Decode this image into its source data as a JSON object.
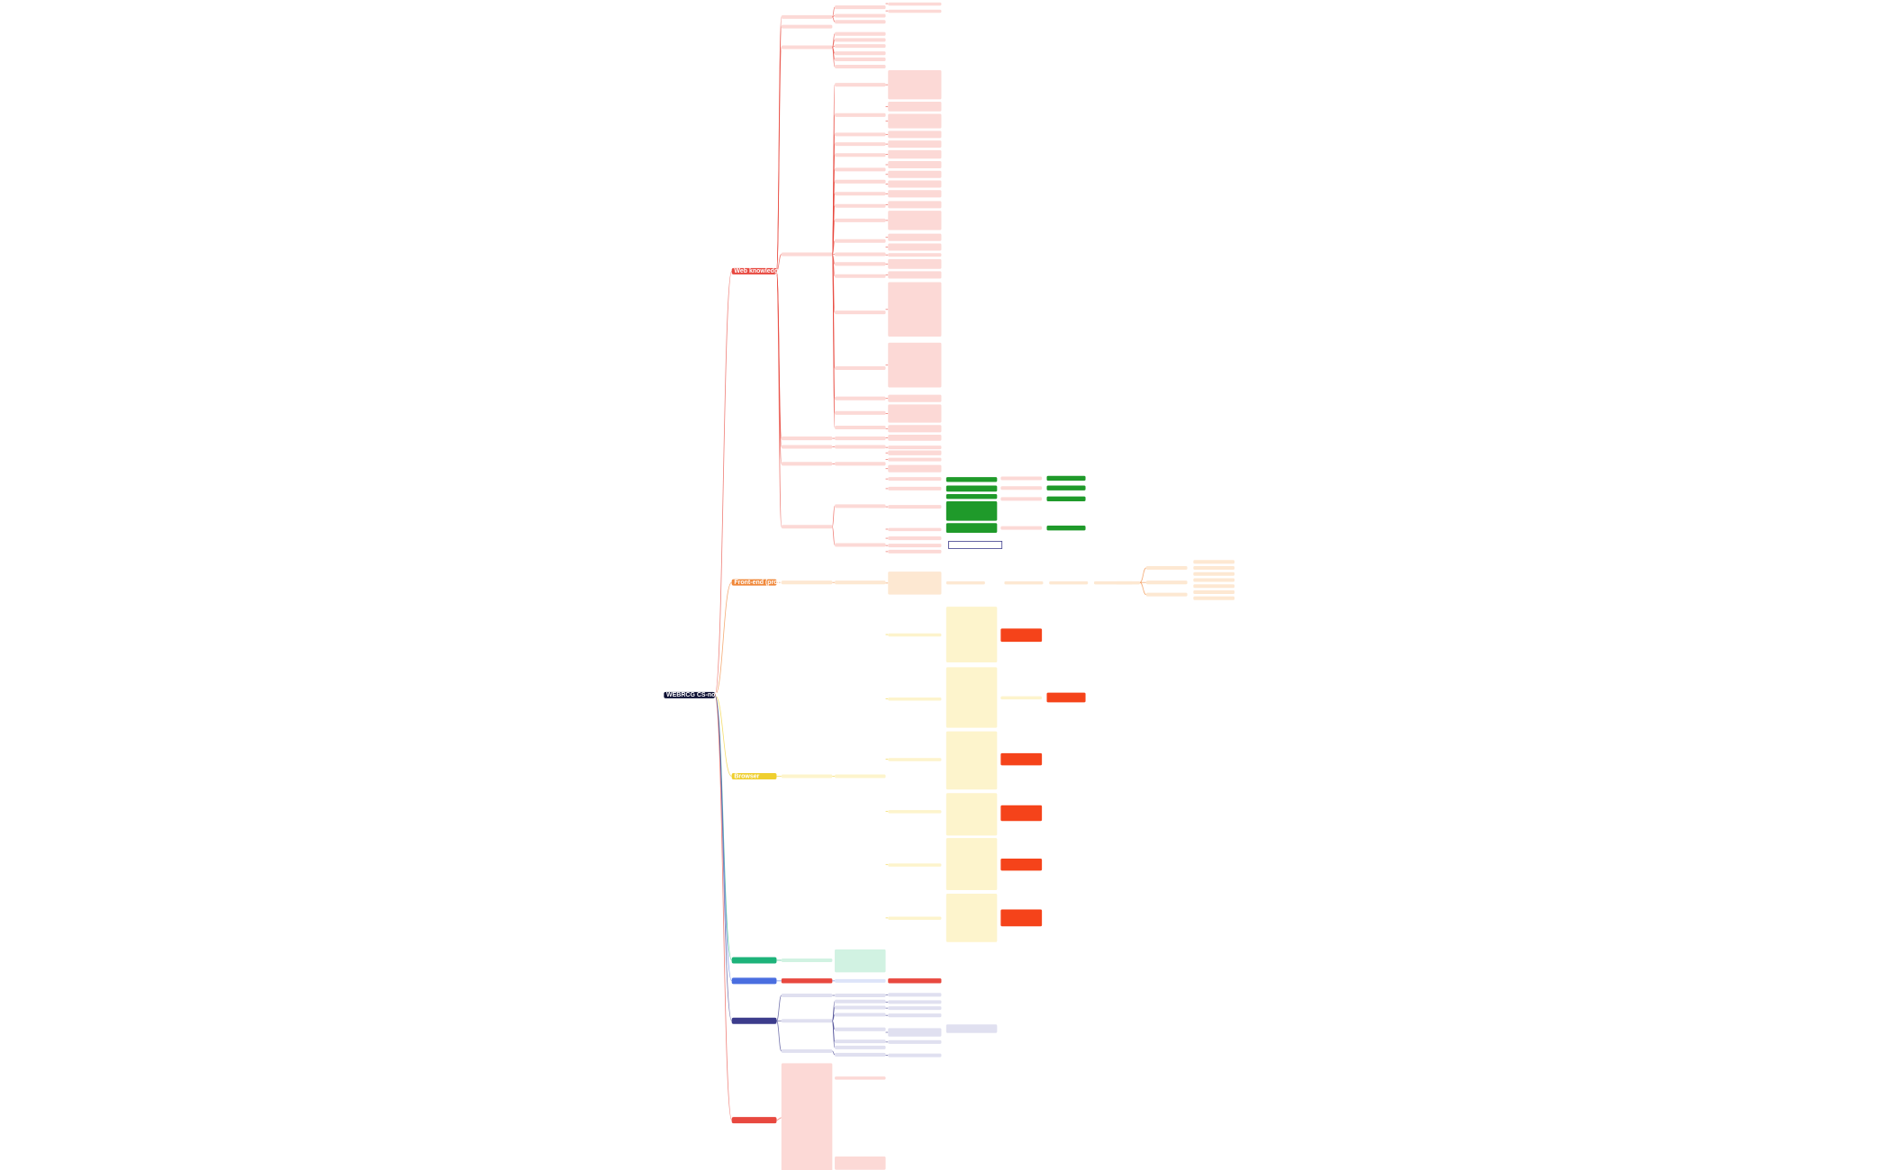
{
  "root": {
    "label": "WEBRCG CS-notes"
  },
  "branches": [
    {
      "label": "Web knowledge"
    },
    {
      "label": "Front-end (problem list)"
    },
    {
      "label": "Browser"
    }
  ]
}
